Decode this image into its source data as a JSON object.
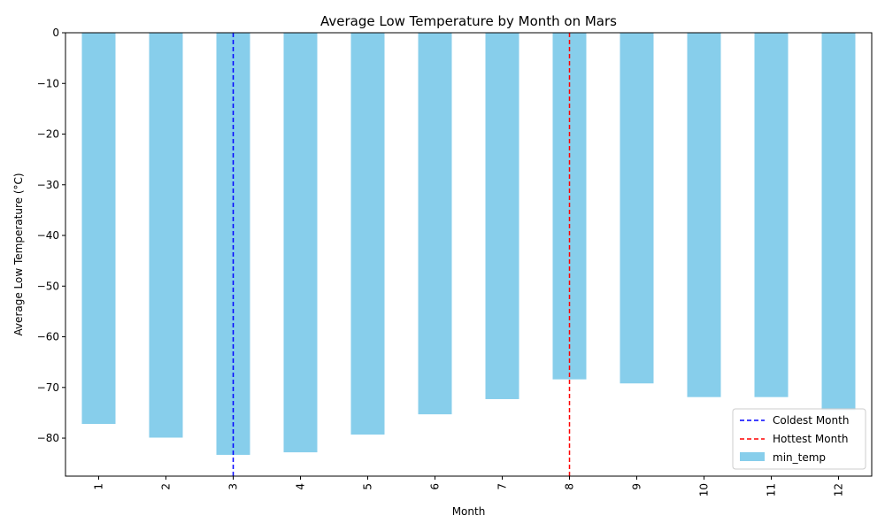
{
  "chart_data": {
    "type": "bar",
    "title": "Average Low Temperature by Month on Mars",
    "xlabel": "Month",
    "ylabel": "Average Low Temperature (°C)",
    "categories": [
      "1",
      "2",
      "3",
      "4",
      "5",
      "6",
      "7",
      "8",
      "9",
      "10",
      "11",
      "12"
    ],
    "series": [
      {
        "name": "min_temp",
        "color": "#87ceeb",
        "values": [
          -77.2,
          -79.9,
          -83.3,
          -82.8,
          -79.3,
          -75.3,
          -72.3,
          -68.4,
          -69.2,
          -71.9,
          -71.9,
          -74.5
        ]
      }
    ],
    "ylim": [
      -87.5,
      0
    ],
    "yticks": [
      0,
      -10,
      -20,
      -30,
      -40,
      -50,
      -60,
      -70,
      -80
    ],
    "ytick_labels": [
      "0",
      "−10",
      "−20",
      "−30",
      "−40",
      "−50",
      "−60",
      "−70",
      "−80"
    ],
    "reference_lines": [
      {
        "name": "Coldest Month",
        "category": "3",
        "color": "#0000ff"
      },
      {
        "name": "Hottest Month",
        "category": "8",
        "color": "#ff0000"
      }
    ],
    "legend": {
      "position": "lower-right",
      "entries": [
        "Coldest Month",
        "Hottest Month",
        "min_temp"
      ]
    },
    "grid": false
  }
}
